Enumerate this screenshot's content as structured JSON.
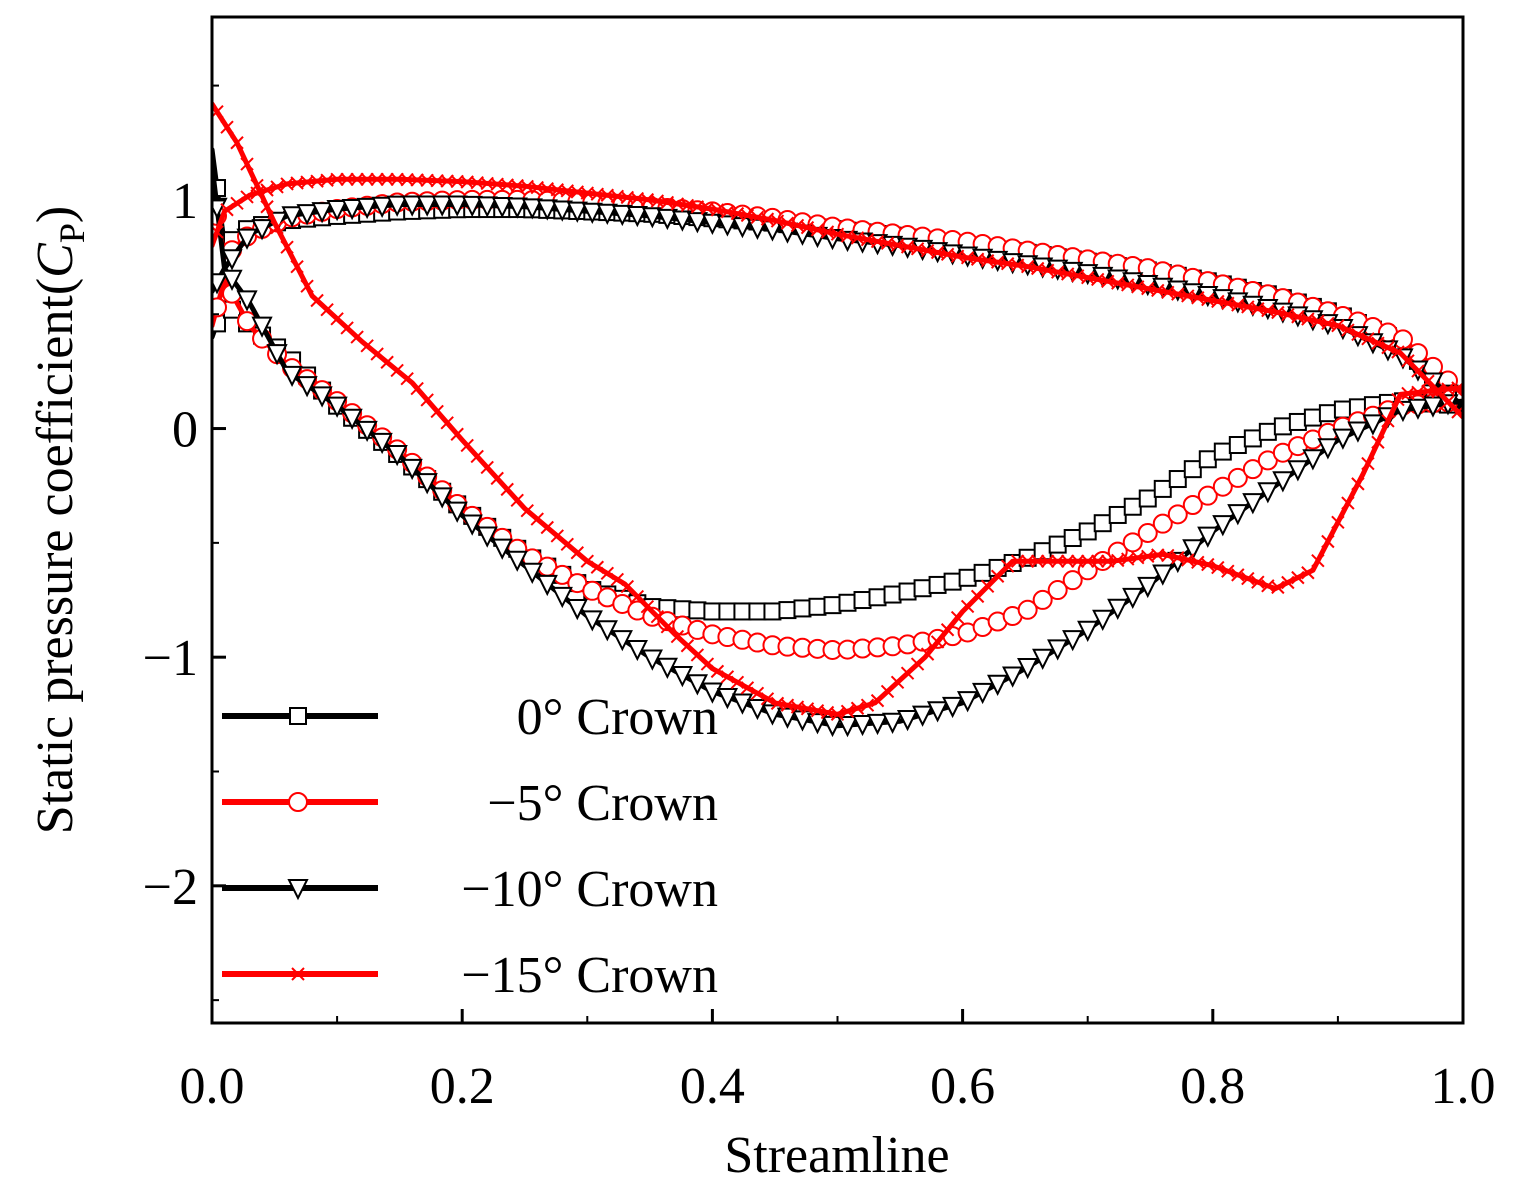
{
  "chart_data": {
    "type": "line",
    "title": "",
    "xlabel": "Streamline",
    "ylabel_prefix": "Static pressure coefficient(",
    "ylabel_symbol": "C",
    "ylabel_subscript": "P",
    "ylabel_suffix": ")",
    "xlim": [
      0.0,
      1.0
    ],
    "ylim": [
      -2.6,
      1.8
    ],
    "x_ticks": [
      0.0,
      0.2,
      0.4,
      0.6,
      0.8,
      1.0
    ],
    "x_tick_labels": [
      "0.0",
      "0.2",
      "0.4",
      "0.6",
      "0.8",
      "1.0"
    ],
    "y_ticks": [
      -2,
      -1,
      0,
      1
    ],
    "y_tick_labels": [
      "−2",
      "−1",
      "0",
      "1"
    ],
    "grid": false,
    "legend_position": "bottom-left",
    "series": [
      {
        "name": "0° Crown",
        "color": "#000000",
        "marker": "square",
        "pressure_side": {
          "x": [
            0.0,
            0.01,
            0.03,
            0.06,
            0.1,
            0.15,
            0.2,
            0.25,
            0.3,
            0.35,
            0.4,
            0.45,
            0.5,
            0.55,
            0.6,
            0.65,
            0.7,
            0.75,
            0.8,
            0.85,
            0.9,
            0.95,
            1.0
          ],
          "y": [
            1.22,
            0.8,
            0.88,
            0.91,
            0.93,
            0.95,
            0.96,
            0.96,
            0.95,
            0.94,
            0.92,
            0.9,
            0.87,
            0.84,
            0.8,
            0.77,
            0.73,
            0.69,
            0.64,
            0.58,
            0.5,
            0.38,
            0.08
          ]
        },
        "suction_side": {
          "x": [
            0.0,
            0.01,
            0.03,
            0.06,
            0.1,
            0.15,
            0.2,
            0.25,
            0.3,
            0.35,
            0.4,
            0.45,
            0.5,
            0.55,
            0.6,
            0.65,
            0.7,
            0.75,
            0.8,
            0.85,
            0.9,
            0.95,
            1.0
          ],
          "y": [
            0.4,
            0.55,
            0.45,
            0.32,
            0.1,
            -0.12,
            -0.35,
            -0.55,
            -0.7,
            -0.78,
            -0.8,
            -0.8,
            -0.77,
            -0.72,
            -0.66,
            -0.57,
            -0.45,
            -0.3,
            -0.12,
            0.0,
            0.08,
            0.12,
            0.1
          ]
        }
      },
      {
        "name": "−5° Crown",
        "color": "#ff0000",
        "marker": "circle",
        "pressure_side": {
          "x": [
            0.0,
            0.01,
            0.03,
            0.06,
            0.1,
            0.15,
            0.2,
            0.25,
            0.3,
            0.35,
            0.4,
            0.45,
            0.5,
            0.55,
            0.6,
            0.65,
            0.7,
            0.75,
            0.8,
            0.85,
            0.9,
            0.95,
            1.0
          ],
          "y": [
            1.05,
            0.75,
            0.85,
            0.92,
            0.96,
            0.99,
            1.0,
            1.0,
            0.99,
            0.97,
            0.95,
            0.92,
            0.88,
            0.85,
            0.82,
            0.78,
            0.74,
            0.7,
            0.64,
            0.58,
            0.5,
            0.4,
            0.15
          ]
        },
        "suction_side": {
          "x": [
            0.0,
            0.01,
            0.03,
            0.06,
            0.1,
            0.15,
            0.2,
            0.25,
            0.3,
            0.35,
            0.4,
            0.45,
            0.5,
            0.55,
            0.6,
            0.65,
            0.7,
            0.75,
            0.8,
            0.85,
            0.9,
            0.95,
            1.0
          ],
          "y": [
            0.45,
            0.65,
            0.45,
            0.28,
            0.12,
            -0.1,
            -0.35,
            -0.55,
            -0.7,
            -0.82,
            -0.9,
            -0.95,
            -0.97,
            -0.95,
            -0.9,
            -0.8,
            -0.62,
            -0.45,
            -0.28,
            -0.12,
            0.0,
            0.1,
            0.12
          ]
        }
      },
      {
        "name": "−10° Crown",
        "color": "#000000",
        "marker": "triangle-down",
        "pressure_side": {
          "x": [
            0.0,
            0.01,
            0.03,
            0.06,
            0.1,
            0.15,
            0.2,
            0.25,
            0.3,
            0.35,
            0.4,
            0.45,
            0.5,
            0.55,
            0.6,
            0.65,
            0.7,
            0.75,
            0.8,
            0.85,
            0.9,
            0.95,
            1.0
          ],
          "y": [
            1.15,
            0.7,
            0.85,
            0.93,
            0.96,
            0.98,
            0.98,
            0.97,
            0.95,
            0.93,
            0.9,
            0.87,
            0.83,
            0.8,
            0.76,
            0.72,
            0.68,
            0.63,
            0.58,
            0.52,
            0.45,
            0.32,
            0.1
          ]
        },
        "suction_side": {
          "x": [
            0.0,
            0.01,
            0.03,
            0.06,
            0.1,
            0.15,
            0.2,
            0.25,
            0.3,
            0.35,
            0.4,
            0.45,
            0.5,
            0.55,
            0.6,
            0.65,
            0.7,
            0.75,
            0.8,
            0.85,
            0.9,
            0.95,
            1.0
          ],
          "y": [
            0.6,
            0.7,
            0.55,
            0.25,
            0.1,
            -0.12,
            -0.38,
            -0.6,
            -0.82,
            -1.0,
            -1.15,
            -1.25,
            -1.3,
            -1.28,
            -1.2,
            -1.05,
            -0.88,
            -0.68,
            -0.45,
            -0.25,
            -0.05,
            0.08,
            0.12
          ]
        }
      },
      {
        "name": "−15° Crown",
        "color": "#ff0000",
        "marker": "x",
        "pressure_side": {
          "x": [
            0.0,
            0.01,
            0.03,
            0.06,
            0.1,
            0.15,
            0.2,
            0.25,
            0.3,
            0.35,
            0.4,
            0.45,
            0.5,
            0.55,
            0.6,
            0.65,
            0.7,
            0.75,
            0.8,
            0.85,
            0.9,
            0.95,
            1.0
          ],
          "y": [
            0.8,
            0.95,
            1.02,
            1.07,
            1.09,
            1.09,
            1.08,
            1.06,
            1.03,
            1.0,
            0.96,
            0.91,
            0.85,
            0.8,
            0.75,
            0.71,
            0.66,
            0.61,
            0.56,
            0.51,
            0.45,
            0.33,
            0.05
          ]
        },
        "suction_side": {
          "x": [
            0.0,
            0.02,
            0.05,
            0.08,
            0.12,
            0.16,
            0.2,
            0.25,
            0.3,
            0.33,
            0.37,
            0.4,
            0.45,
            0.5,
            0.53,
            0.57,
            0.6,
            0.64,
            0.68,
            0.72,
            0.76,
            0.8,
            0.85,
            0.88,
            0.92,
            0.95,
            1.0
          ],
          "y": [
            1.42,
            1.25,
            0.9,
            0.58,
            0.38,
            0.2,
            -0.05,
            -0.35,
            -0.58,
            -0.68,
            -0.9,
            -1.05,
            -1.2,
            -1.25,
            -1.2,
            -1.0,
            -0.8,
            -0.58,
            -0.58,
            -0.58,
            -0.55,
            -0.6,
            -0.7,
            -0.62,
            -0.2,
            0.15,
            0.18
          ]
        }
      }
    ]
  }
}
